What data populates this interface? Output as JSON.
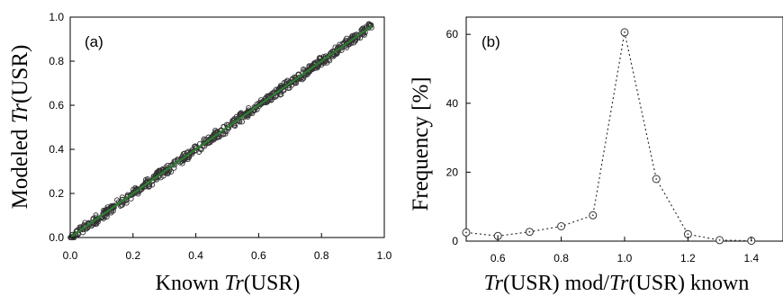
{
  "chart_data": [
    {
      "type": "scatter",
      "panel_label": "(a)",
      "xlabel_parts": [
        "Known ",
        "Tr",
        "(USR)"
      ],
      "ylabel_parts": [
        "Modeled ",
        "Tr",
        "(USR)"
      ],
      "xlim": [
        0.0,
        1.0
      ],
      "ylim": [
        0.0,
        1.0
      ],
      "xticks": [
        "0.0",
        "0.2",
        "0.4",
        "0.6",
        "0.8",
        "1.0"
      ],
      "yticks": [
        "0.0",
        "0.2",
        "0.4",
        "0.6",
        "0.8",
        "1.0"
      ],
      "point_range": [
        0.0,
        0.96
      ],
      "fit_line": {
        "x": [
          0.0,
          0.96
        ],
        "y": [
          0.0,
          0.96
        ],
        "color": "#2e7d32"
      },
      "marker_color": "#333333"
    },
    {
      "type": "line",
      "panel_label": "(b)",
      "xlabel_parts": [
        "Tr",
        "(USR)  mod/",
        "Tr",
        "(USR)  known"
      ],
      "ylabel": "Frequency  [%]",
      "xlim": [
        0.5,
        1.5
      ],
      "ylim": [
        0,
        65
      ],
      "xticks": [
        "0.6",
        "0.8",
        "1.0",
        "1.2",
        "1.4"
      ],
      "yticks": [
        "0",
        "20",
        "40",
        "60"
      ],
      "x": [
        0.5,
        0.6,
        0.7,
        0.8,
        0.9,
        1.0,
        1.1,
        1.2,
        1.3,
        1.4
      ],
      "y": [
        2.5,
        1.5,
        2.7,
        4.3,
        7.5,
        60.6,
        18.0,
        2.0,
        0.3,
        0.1
      ],
      "line_style": "dotted",
      "marker": "circle-dot"
    }
  ]
}
